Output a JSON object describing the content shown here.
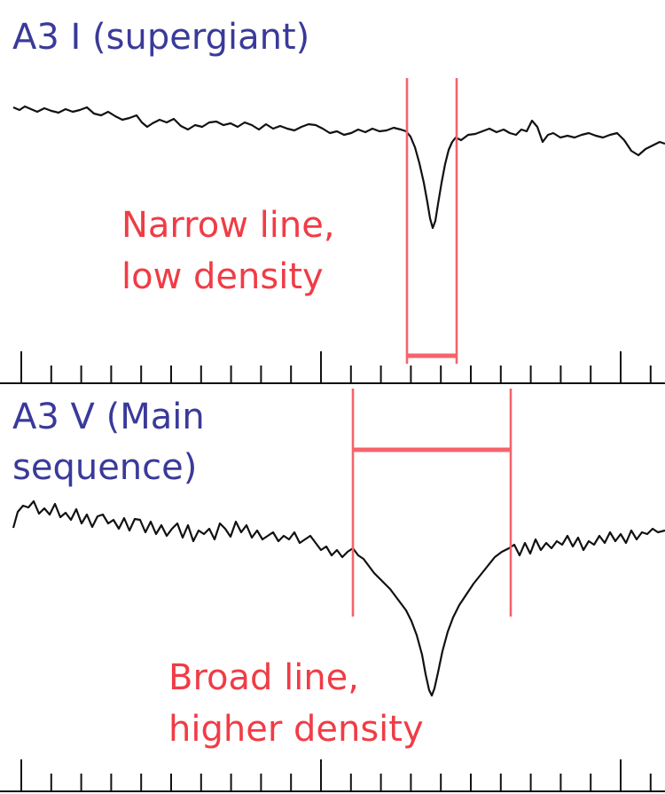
{
  "panels": {
    "top": {
      "title": "A3 I (supergiant)",
      "annotation_line1": "Narrow line,",
      "annotation_line2": "low density"
    },
    "bottom": {
      "title_line1": "A3 V (Main",
      "title_line2": "sequence)",
      "annotation_line1": "Broad line,",
      "annotation_line2": "higher density"
    }
  },
  "colors": {
    "spectrum": "#111111",
    "marker": "#f5636b",
    "title": "#3a3a9a",
    "annotation": "#f03c46"
  }
}
